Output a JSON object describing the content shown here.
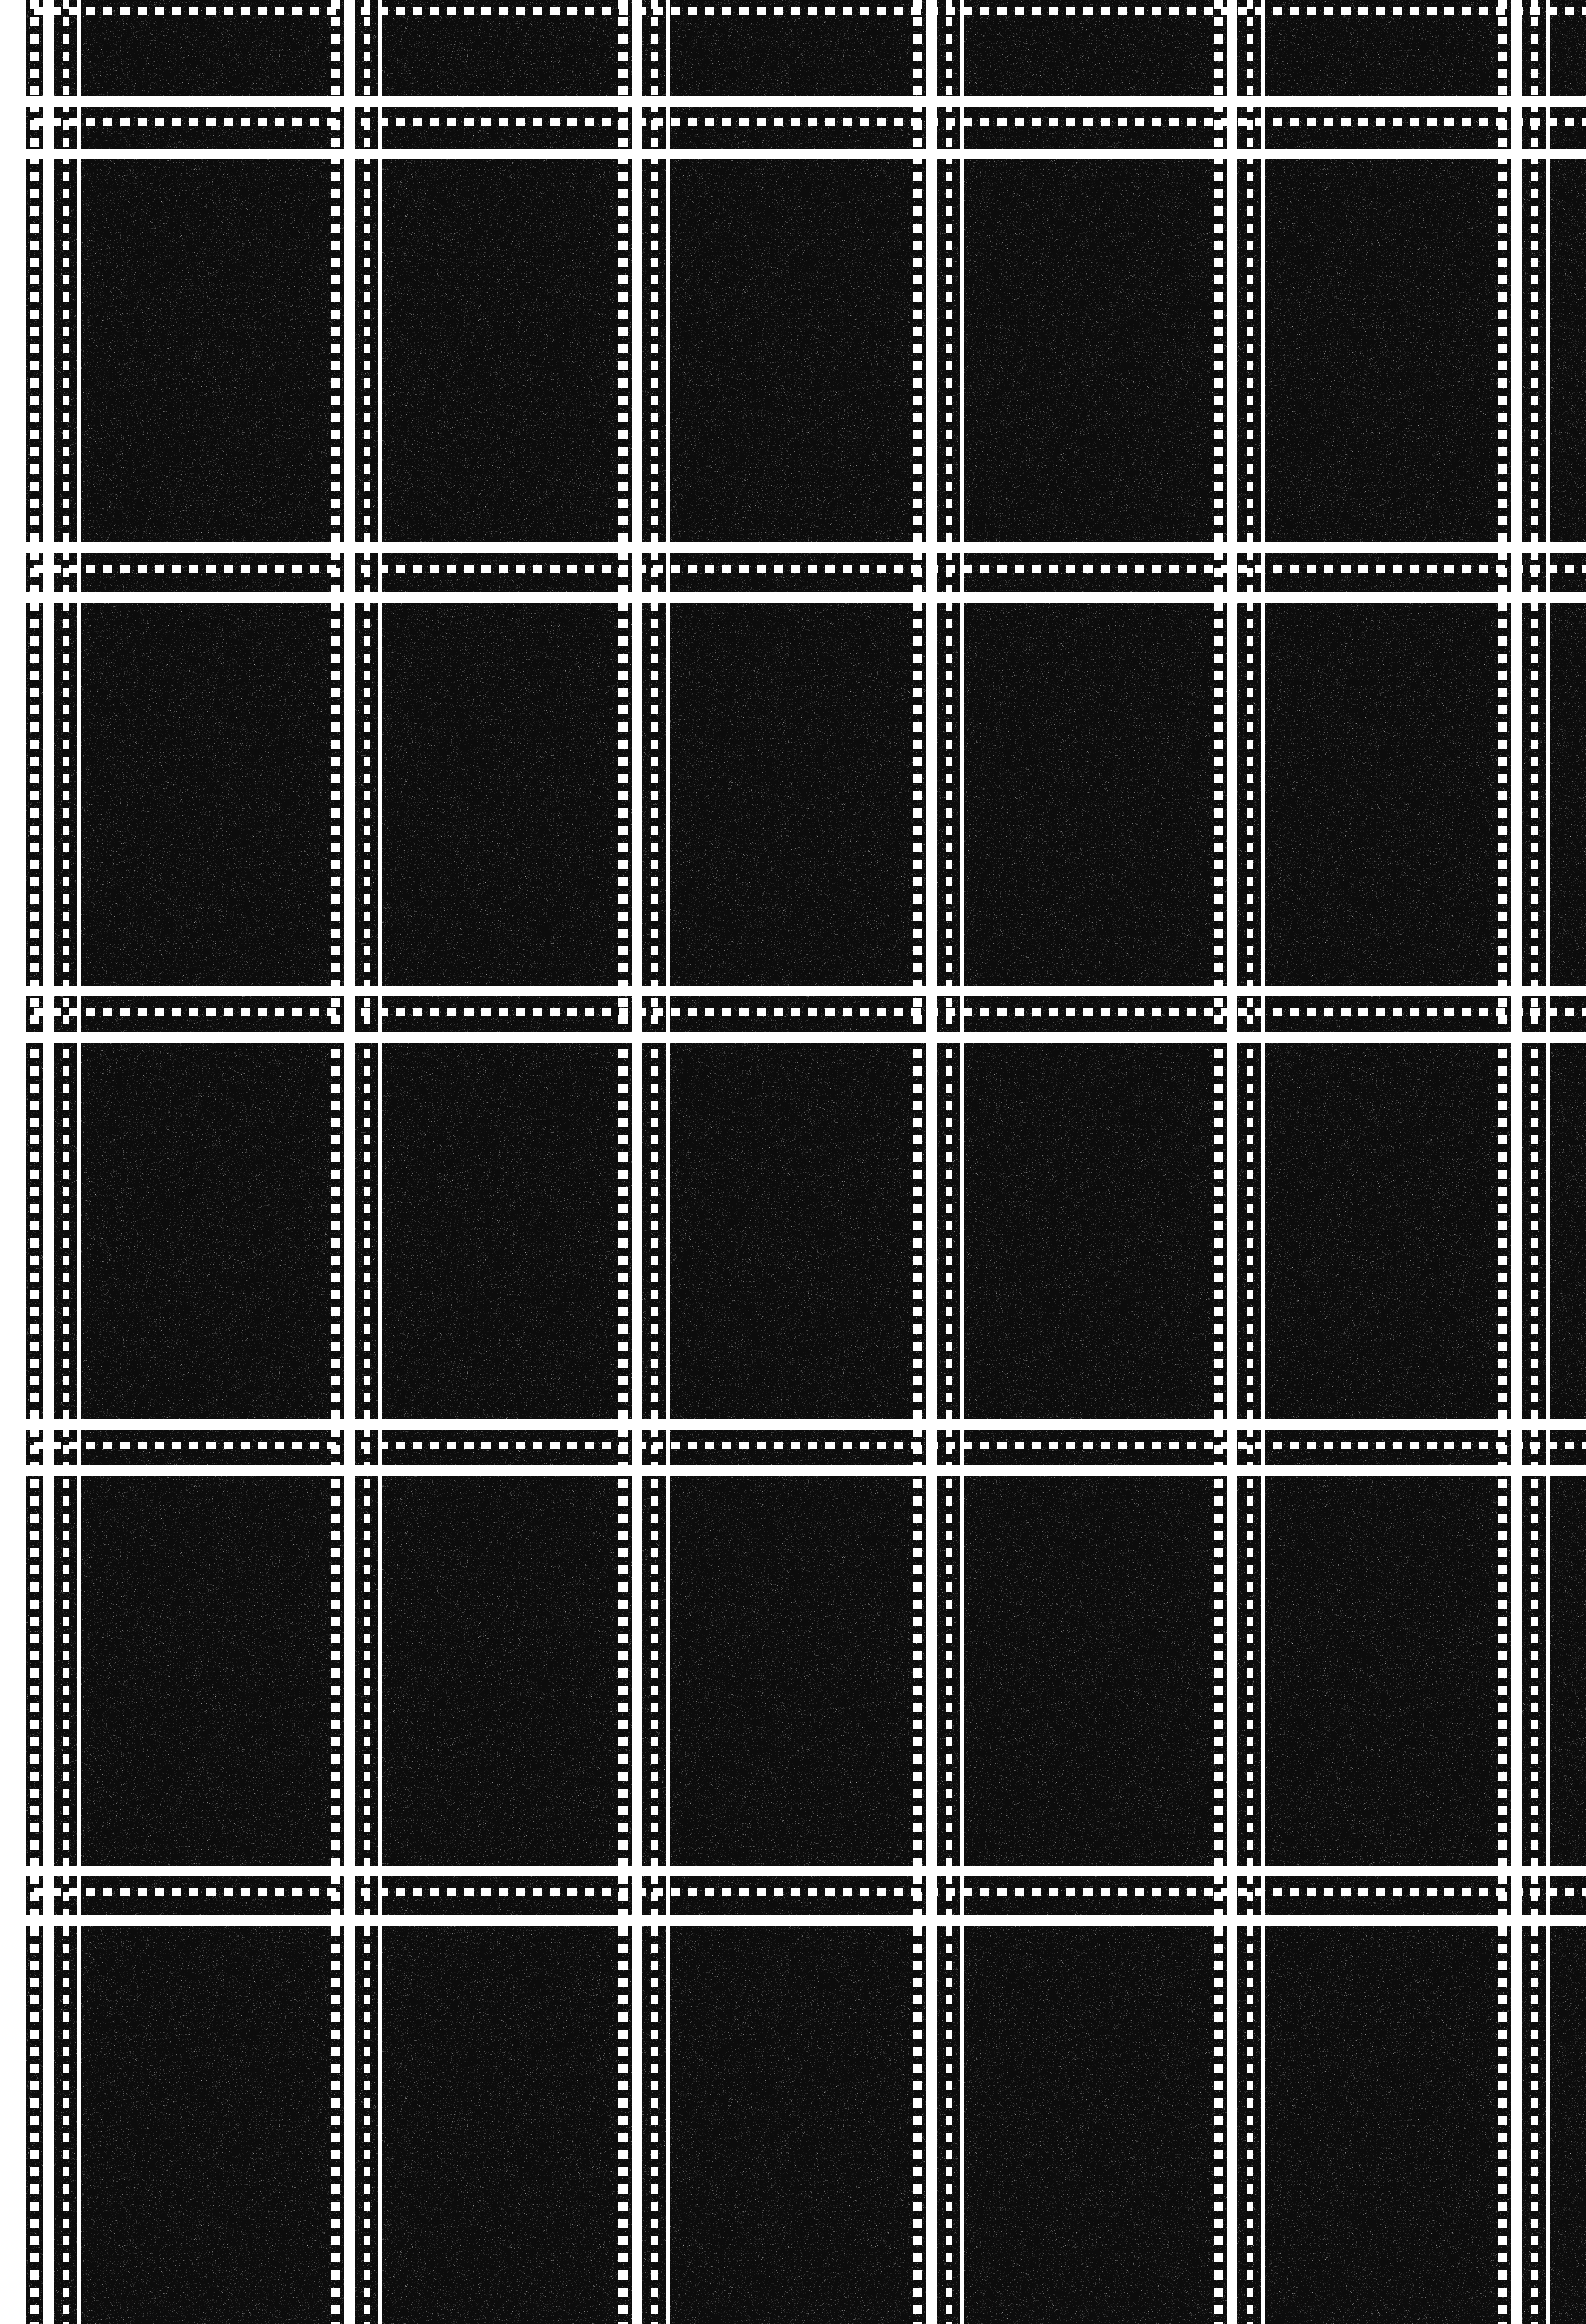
{
  "image": {
    "subject": "plaid-grid-pattern",
    "colors": {
      "paper": "#ffffff",
      "ink": "#0c0c0c",
      "line": "#ffffff",
      "speckle": "#ffffff"
    },
    "grid": {
      "column_bands": 6,
      "row_bands": 5
    }
  }
}
